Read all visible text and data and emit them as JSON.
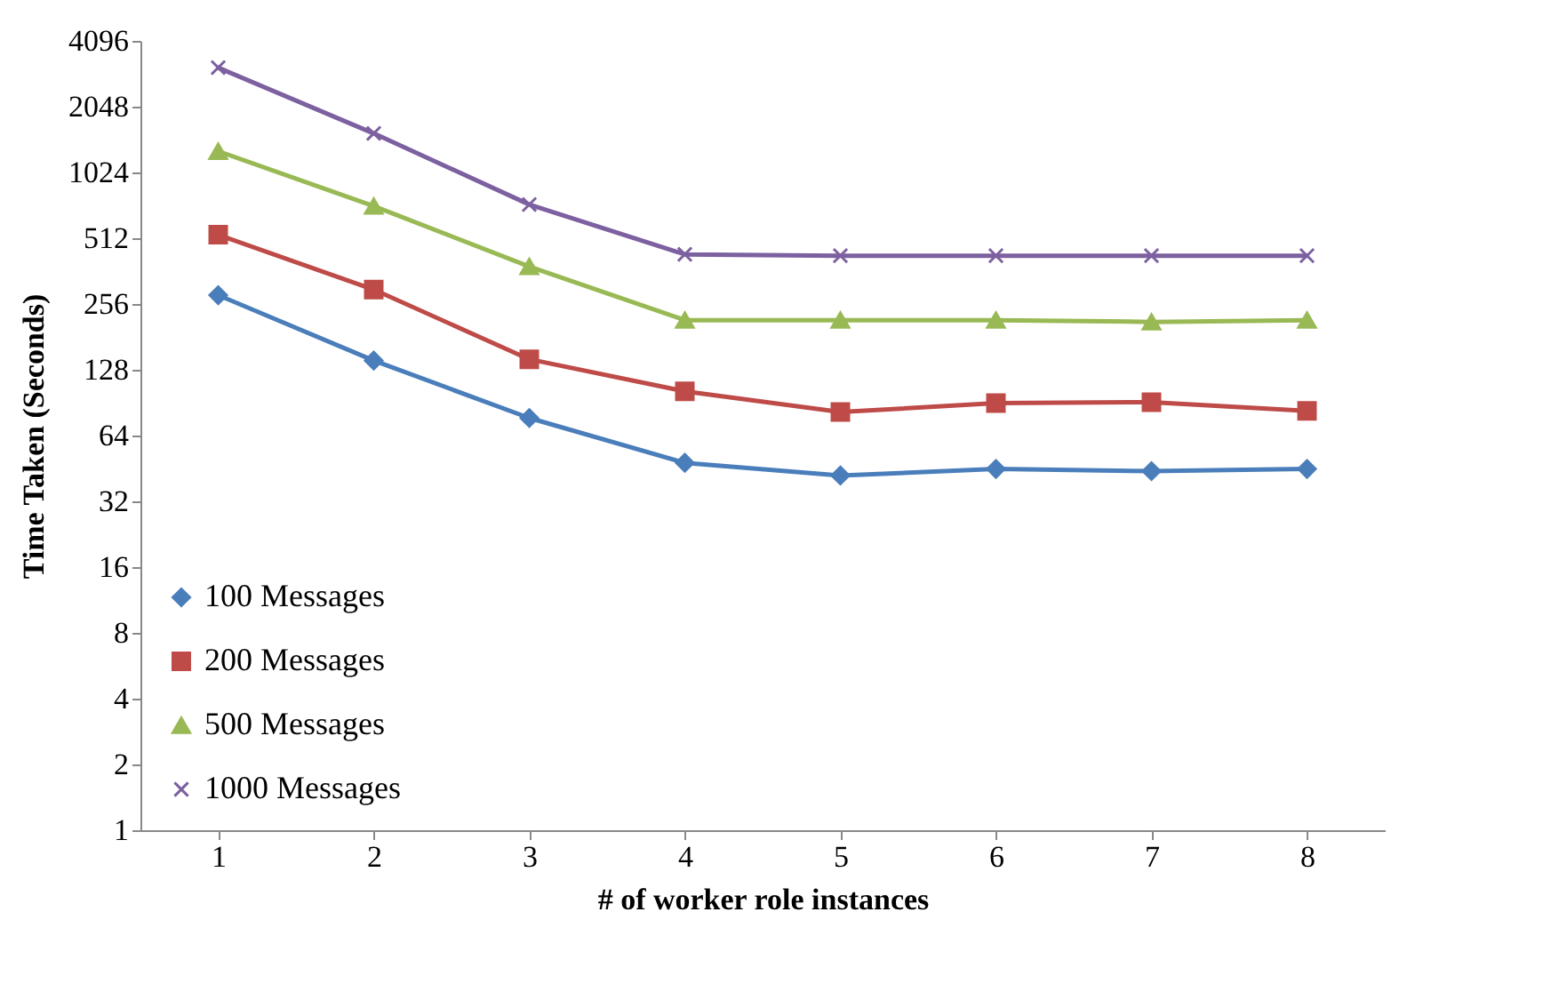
{
  "chart_data": {
    "type": "line",
    "xlabel": "# of worker role instances",
    "ylabel": "Time Taken (Seconds)",
    "categories": [
      "1",
      "2",
      "3",
      "4",
      "5",
      "6",
      "7",
      "8"
    ],
    "series": [
      {
        "name": "100 Messages",
        "color": "#4a7ebb",
        "marker": "diamond",
        "values": [
          281,
          141,
          77,
          48,
          42,
          45,
          44,
          45
        ]
      },
      {
        "name": "200 Messages",
        "color": "#be4b48",
        "marker": "square",
        "values": [
          531,
          298,
          143,
          102,
          82,
          90,
          91,
          83
        ]
      },
      {
        "name": "500 Messages",
        "color": "#98b954",
        "marker": "triangle",
        "values": [
          1280,
          718,
          380,
          216,
          216,
          216,
          212,
          216
        ]
      },
      {
        "name": "1000 Messages",
        "color": "#7d60a0",
        "marker": "cross",
        "values": [
          3090,
          1545,
          730,
          432,
          426,
          426,
          426,
          426
        ]
      }
    ],
    "log": "y",
    "ylim": [
      1,
      4096
    ],
    "yticks": [
      1,
      2,
      4,
      8,
      16,
      32,
      64,
      128,
      256,
      512,
      1024,
      2048,
      4096
    ],
    "grid": false,
    "legend": "bottom left"
  }
}
